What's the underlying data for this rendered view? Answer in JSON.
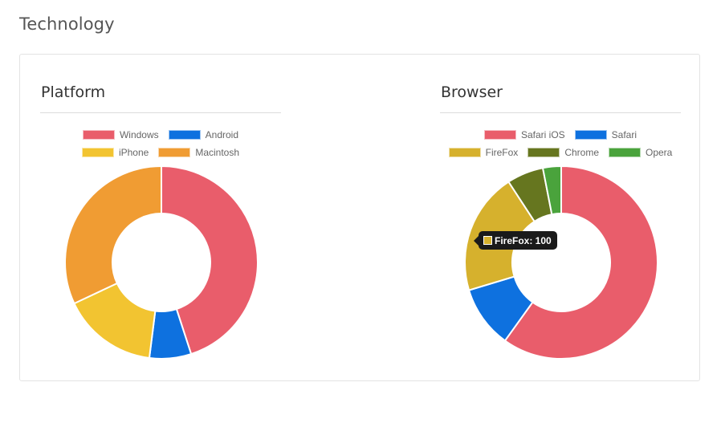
{
  "page": {
    "title": "Technology"
  },
  "chart_data": [
    {
      "type": "pie",
      "variant": "doughnut",
      "title": "Platform",
      "legend_position": "top",
      "categories": [
        "Windows",
        "Android",
        "iPhone",
        "Macintosh"
      ],
      "values": [
        45,
        7,
        16,
        32
      ],
      "colors": [
        "#e95d6b",
        "#0e71df",
        "#f2c431",
        "#f09c33"
      ]
    },
    {
      "type": "pie",
      "variant": "doughnut",
      "title": "Browser",
      "legend_position": "top",
      "categories": [
        "Safari iOS",
        "Safari",
        "FireFox",
        "Chrome",
        "Opera"
      ],
      "values": [
        293,
        51,
        100,
        30,
        15
      ],
      "colors": [
        "#e95d6b",
        "#0e71df",
        "#d6b12d",
        "#66761f",
        "#4aa33c"
      ],
      "tooltip": {
        "label": "FireFox",
        "value": "100",
        "text": "FireFox: 100",
        "color": "#d6b12d"
      }
    }
  ]
}
